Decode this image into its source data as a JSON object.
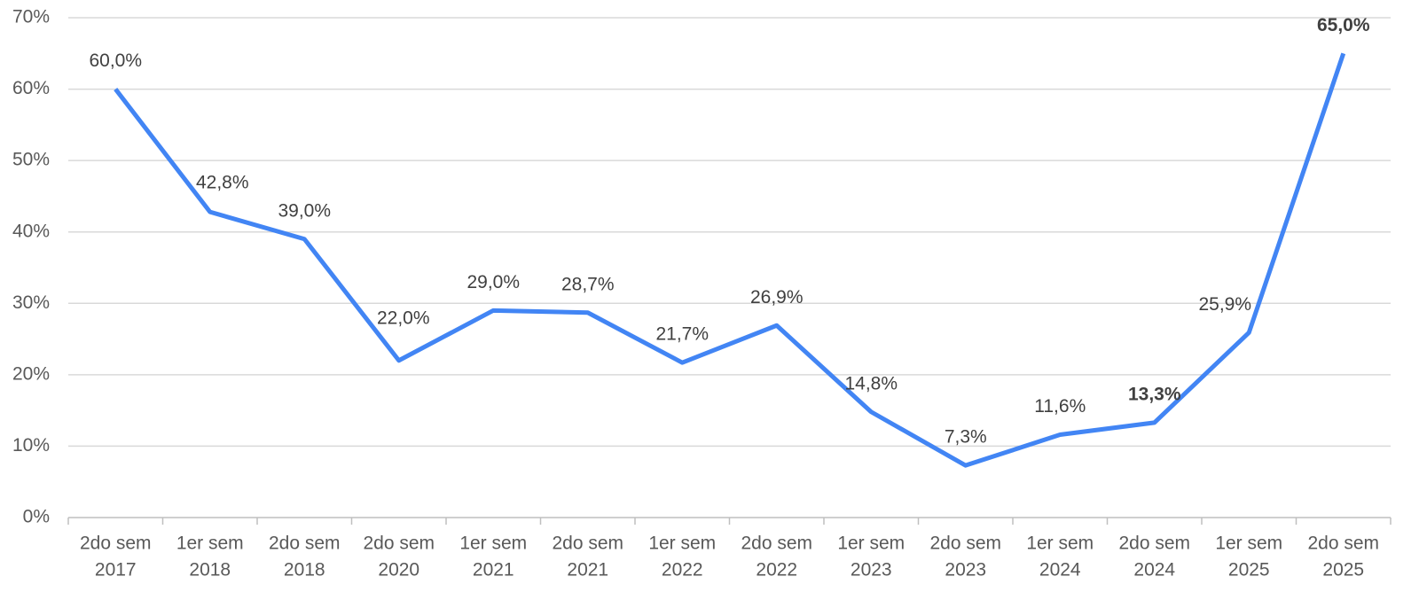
{
  "chart_data": {
    "type": "line",
    "categories": [
      [
        "2do sem",
        "2017"
      ],
      [
        "1er sem",
        "2018"
      ],
      [
        "2do sem",
        "2018"
      ],
      [
        "2do sem",
        "2020"
      ],
      [
        "1er sem",
        "2021"
      ],
      [
        "2do sem",
        "2021"
      ],
      [
        "1er sem",
        "2022"
      ],
      [
        "2do sem",
        "2022"
      ],
      [
        "1er sem",
        "2023"
      ],
      [
        "2do sem",
        "2023"
      ],
      [
        "1er sem",
        "2024"
      ],
      [
        "2do sem",
        "2024"
      ],
      [
        "1er sem",
        "2025"
      ],
      [
        "2do sem",
        "2025"
      ]
    ],
    "values": [
      60,
      42.8,
      39,
      22,
      29,
      28.7,
      21.7,
      26.9,
      14.8,
      7.3,
      11.6,
      13.3,
      25.9,
      65
    ],
    "value_labels": [
      "60,0%",
      "42,8%",
      "39,0%",
      "22,0%",
      "29,0%",
      "28,7%",
      "21,7%",
      "26,9%",
      "14,8%",
      "7,3%",
      "11,6%",
      "13,3%",
      "25,9%",
      "65,0%"
    ],
    "value_label_bold": [
      false,
      false,
      false,
      false,
      false,
      false,
      false,
      false,
      false,
      false,
      false,
      true,
      false,
      true
    ],
    "color": "#4285f4",
    "ylim": [
      0,
      70
    ],
    "yticks": [
      {
        "value": 0,
        "label": "0%"
      },
      {
        "value": 10,
        "label": "10%"
      },
      {
        "value": 20,
        "label": "20%"
      },
      {
        "value": 30,
        "label": "30%"
      },
      {
        "value": 40,
        "label": "40%"
      },
      {
        "value": 50,
        "label": "50%"
      },
      {
        "value": 60,
        "label": "60%"
      },
      {
        "value": 70,
        "label": "70%"
      }
    ],
    "grid": true
  }
}
